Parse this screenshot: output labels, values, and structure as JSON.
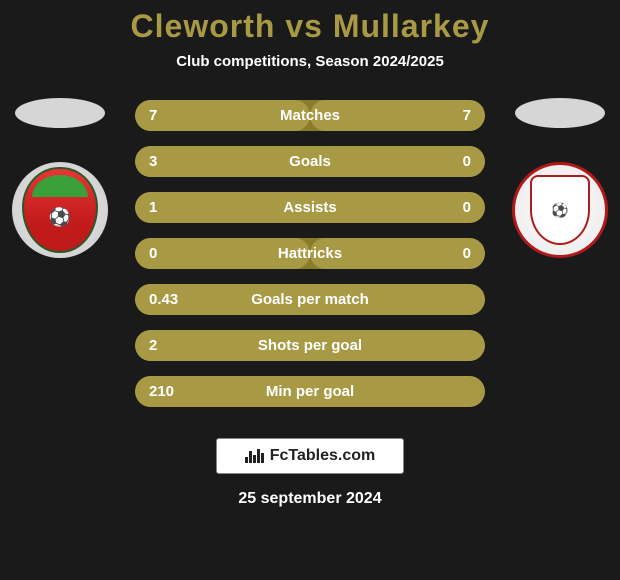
{
  "title": {
    "player1": "Cleworth",
    "vs": "vs",
    "player2": "Mullarkey",
    "player1_color": "#a89a45",
    "vs_color": "#a89a45",
    "player2_color": "#a89a45",
    "fontsize": 32
  },
  "subtitle": "Club competitions, Season 2024/2025",
  "background_color": "#1a1a1a",
  "ellipse_markers": {
    "left_color": "#d6d6d6",
    "right_color": "#d6d6d6"
  },
  "crests": {
    "left": {
      "name": "wrexham-crest",
      "primary": "#c01a1a",
      "secondary": "#3aa03a",
      "ring": "#e8e8e8"
    },
    "right": {
      "name": "crawley-town-crest",
      "primary": "#b01a1a",
      "secondary": "#ffffff",
      "ring": "#ffffff"
    }
  },
  "stats": {
    "row_bg_empty": "#8a7c2a",
    "fill_left_color": "#a89a45",
    "fill_right_color": "#a89a45",
    "text_color": "#ffffff",
    "label_fontsize": 15,
    "value_fontsize": 15,
    "rows": [
      {
        "label": "Matches",
        "left": "7",
        "right": "7",
        "left_pct": 50,
        "right_pct": 50
      },
      {
        "label": "Goals",
        "left": "3",
        "right": "0",
        "left_pct": 100,
        "right_pct": 0
      },
      {
        "label": "Assists",
        "left": "1",
        "right": "0",
        "left_pct": 100,
        "right_pct": 0
      },
      {
        "label": "Hattricks",
        "left": "0",
        "right": "0",
        "left_pct": 50,
        "right_pct": 50
      },
      {
        "label": "Goals per match",
        "left": "0.43",
        "right": "",
        "left_pct": 100,
        "right_pct": 0
      },
      {
        "label": "Shots per goal",
        "left": "2",
        "right": "",
        "left_pct": 100,
        "right_pct": 0
      },
      {
        "label": "Min per goal",
        "left": "210",
        "right": "",
        "left_pct": 100,
        "right_pct": 0
      }
    ]
  },
  "footer": {
    "site_label": "FcTables.com",
    "date": "25 september 2024",
    "badge_bg": "#ffffff",
    "badge_text_color": "#222222"
  }
}
